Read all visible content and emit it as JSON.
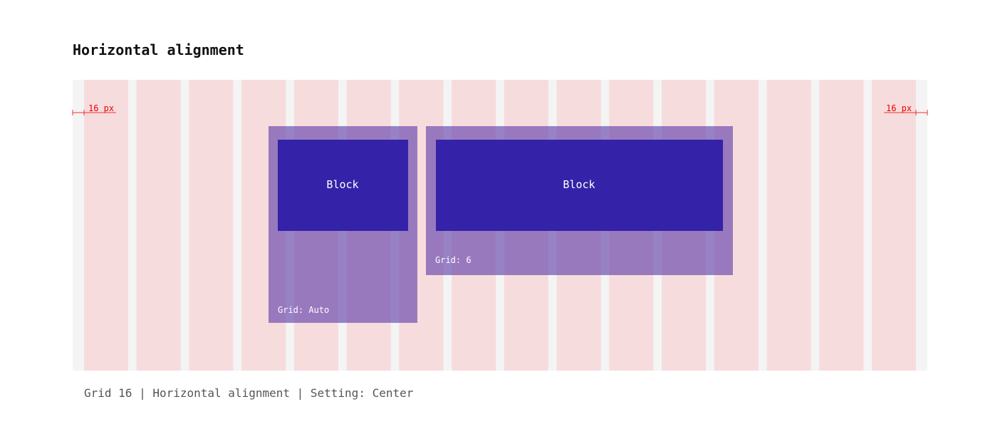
{
  "title": "Horizontal alignment",
  "margins": {
    "left": "16 px",
    "right": "16 px"
  },
  "containers": [
    {
      "block": "Block",
      "grid": "Grid: Auto"
    },
    {
      "block": "Block",
      "grid": "Grid: 6"
    }
  ],
  "caption": "Grid 16 | Horizontal alignment | Setting: Center"
}
